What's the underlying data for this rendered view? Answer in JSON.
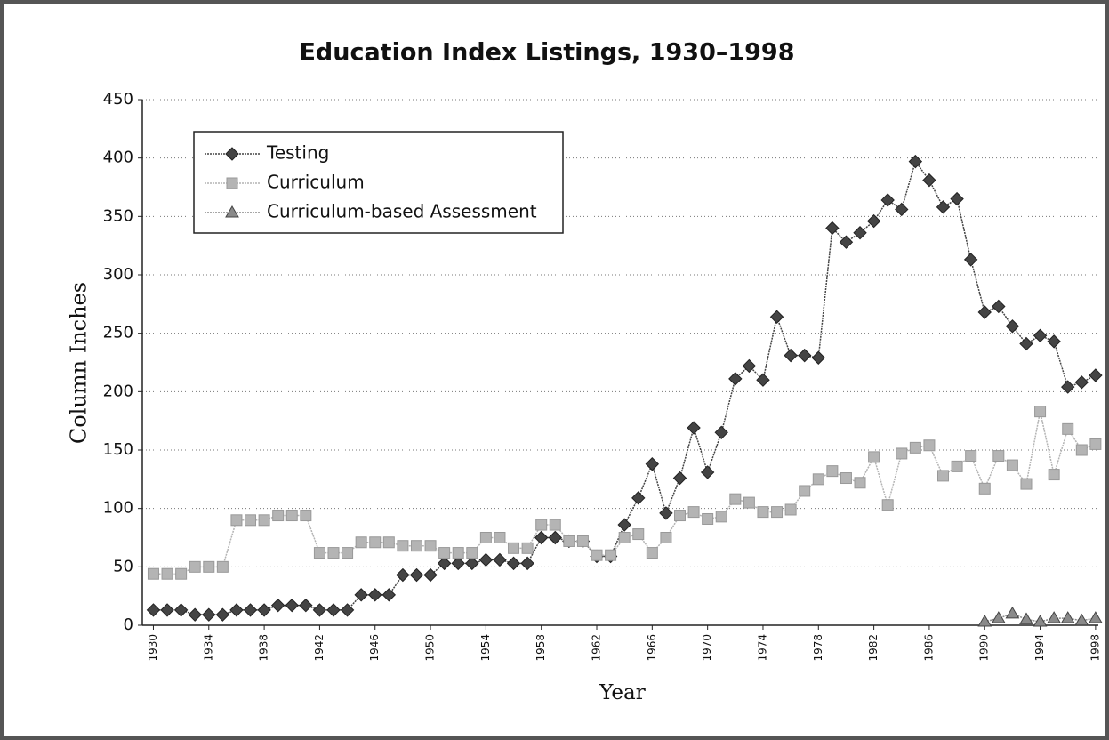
{
  "chart_data": {
    "type": "line",
    "title": "Education Index Listings, 1930–1998",
    "xlabel": "Year",
    "ylabel": "Column Inches",
    "x": [
      1930,
      1931,
      1932,
      1933,
      1934,
      1935,
      1936,
      1937,
      1938,
      1939,
      1940,
      1941,
      1942,
      1943,
      1944,
      1945,
      1946,
      1947,
      1948,
      1949,
      1950,
      1951,
      1952,
      1953,
      1954,
      1955,
      1956,
      1957,
      1958,
      1959,
      1960,
      1961,
      1962,
      1963,
      1964,
      1965,
      1966,
      1967,
      1968,
      1969,
      1970,
      1971,
      1972,
      1973,
      1974,
      1975,
      1976,
      1977,
      1978,
      1979,
      1980,
      1981,
      1982,
      1983,
      1984,
      1985,
      1986,
      1987,
      1988,
      1989,
      1990,
      1991,
      1992,
      1993,
      1994,
      1995,
      1996,
      1997,
      1998
    ],
    "series": [
      {
        "name": "Testing",
        "color": "#444444",
        "marker": "diamond",
        "values": [
          13,
          13,
          13,
          9,
          9,
          9,
          13,
          13,
          13,
          17,
          17,
          17,
          13,
          13,
          13,
          26,
          26,
          26,
          43,
          43,
          43,
          53,
          53,
          53,
          56,
          56,
          53,
          53,
          75,
          75,
          72,
          72,
          59,
          59,
          86,
          109,
          138,
          96,
          126,
          169,
          131,
          165,
          211,
          222,
          210,
          264,
          231,
          231,
          229,
          340,
          328,
          336,
          346,
          364,
          356,
          397,
          381,
          358,
          365,
          313,
          268,
          273,
          256,
          241,
          248,
          243,
          204,
          208,
          214
        ]
      },
      {
        "name": "Curriculum",
        "color": "#b4b4b4",
        "marker": "square",
        "values": [
          44,
          44,
          44,
          50,
          50,
          50,
          90,
          90,
          90,
          94,
          94,
          94,
          62,
          62,
          62,
          71,
          71,
          71,
          68,
          68,
          68,
          62,
          62,
          62,
          75,
          75,
          66,
          66,
          86,
          86,
          72,
          72,
          60,
          60,
          75,
          78,
          62,
          75,
          94,
          97,
          91,
          93,
          108,
          105,
          97,
          97,
          99,
          115,
          125,
          132,
          126,
          122,
          144,
          103,
          147,
          152,
          154,
          128,
          136,
          145,
          117,
          145,
          137,
          121,
          183,
          129,
          168,
          150,
          155
        ]
      },
      {
        "name": "Curriculum-based Assessment",
        "color": "#8a8a8a",
        "marker": "triangle",
        "values": [
          null,
          null,
          null,
          null,
          null,
          null,
          null,
          null,
          null,
          null,
          null,
          null,
          null,
          null,
          null,
          null,
          null,
          null,
          null,
          null,
          null,
          null,
          null,
          null,
          null,
          null,
          null,
          null,
          null,
          null,
          null,
          null,
          null,
          null,
          null,
          null,
          null,
          null,
          null,
          null,
          null,
          null,
          null,
          null,
          null,
          null,
          null,
          null,
          null,
          null,
          null,
          null,
          null,
          null,
          null,
          null,
          null,
          null,
          null,
          null,
          3,
          6,
          10,
          5,
          3,
          6,
          6,
          4,
          6
        ]
      }
    ],
    "xlim": [
      1929.2,
      1998.2
    ],
    "xticks": [
      1930,
      1934,
      1938,
      1942,
      1946,
      1950,
      1954,
      1958,
      1962,
      1966,
      1970,
      1974,
      1978,
      1982,
      1986,
      1990,
      1994,
      1998
    ],
    "ylim": [
      0,
      450
    ],
    "yticks": [
      0,
      50,
      100,
      150,
      200,
      250,
      300,
      350,
      400,
      450
    ],
    "grid": true,
    "legend": "upper left"
  }
}
